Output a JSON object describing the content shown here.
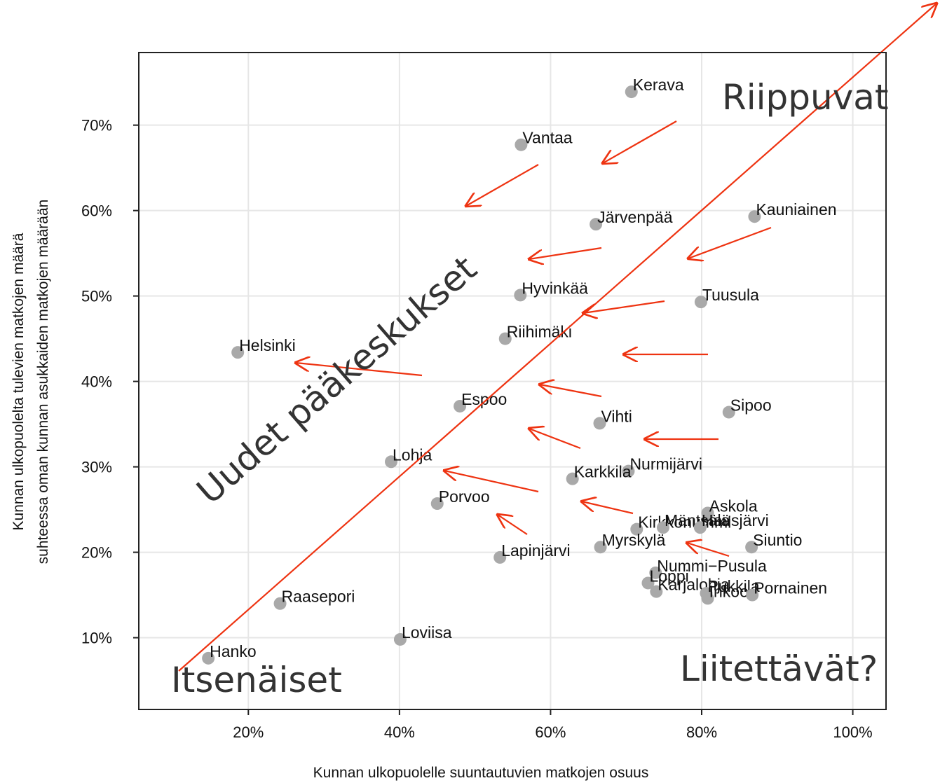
{
  "chart_data": {
    "type": "scatter",
    "xlabel": "Kunnan ulkopuolelle suuntautuvien matkojen osuus",
    "ylabel": [
      "Kunnan ulkopuolelta tulevien matkojen määrä",
      "suhteessa oman kunnan asukkaiden matkojen määrään"
    ],
    "annotations": [
      "Riippuvat",
      "Uudet pääkeskukset",
      "Itsenäiset",
      "Liitettävät?"
    ],
    "color": "#a9a9a9",
    "grid": true,
    "xlim": [
      5.5,
      104.4
    ],
    "ylim": [
      1.6,
      78.5
    ],
    "xticks": [
      {
        "value": 20,
        "label": "20%"
      },
      {
        "value": 40,
        "label": "40%"
      },
      {
        "value": 60,
        "label": "60%"
      },
      {
        "value": 80,
        "label": "80%"
      },
      {
        "value": 100,
        "label": "100%"
      }
    ],
    "yticks": [
      {
        "value": 10,
        "label": "10%"
      },
      {
        "value": 20,
        "label": "20%"
      },
      {
        "value": 30,
        "label": "30%"
      },
      {
        "value": 40,
        "label": "40%"
      },
      {
        "value": 50,
        "label": "50%"
      },
      {
        "value": 60,
        "label": "60%"
      },
      {
        "value": 70,
        "label": "70%"
      }
    ],
    "labels": [
      "Kerava",
      "Vantaa",
      "Järvenpää",
      "Kauniainen",
      "Hyvinkää",
      "Tuusula",
      "Riihimäki",
      "Helsinki",
      "Espoo",
      "Sipoo",
      "Vihti",
      "Lohja",
      "Nurmijärvi",
      "Karkkila",
      "Porvoo",
      "Askola",
      "Kirkkonummi",
      "Mäntsälä",
      "Hausjärvi",
      "Myrskylä",
      "Siuntio",
      "Lapinjärvi",
      "Nummi−Pusula",
      "Loppi",
      "Karjalohja",
      "Pukkila",
      "Inkoo",
      "Pornainen",
      "Raasepori",
      "Loviisa",
      "Hanko"
    ],
    "x": [
      70.7,
      56.1,
      66.0,
      87.0,
      56.0,
      79.9,
      54.0,
      18.6,
      48.0,
      83.6,
      66.5,
      38.9,
      70.3,
      62.9,
      45.0,
      80.8,
      71.4,
      74.9,
      79.8,
      66.6,
      86.6,
      53.3,
      73.9,
      72.9,
      74.0,
      80.6,
      80.8,
      86.7,
      24.2,
      40.1,
      14.7
    ],
    "y": [
      73.9,
      67.7,
      58.4,
      59.3,
      50.1,
      49.3,
      45.0,
      43.4,
      37.1,
      36.4,
      35.1,
      30.6,
      29.5,
      28.6,
      25.7,
      24.6,
      22.7,
      22.9,
      22.9,
      20.6,
      20.6,
      19.4,
      17.6,
      16.4,
      15.4,
      15.2,
      14.6,
      15.0,
      14.0,
      9.8,
      7.6
    ]
  }
}
